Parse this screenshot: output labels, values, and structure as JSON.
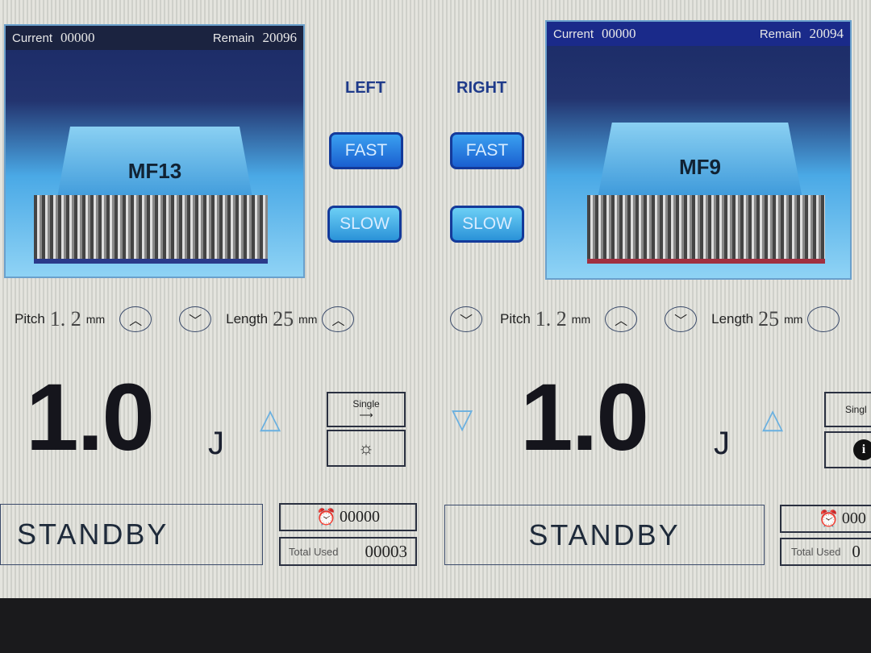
{
  "left": {
    "side_label": "LEFT",
    "current_label": "Current",
    "current": "00000",
    "remain_label": "Remain",
    "remain": "20096",
    "cartridge": "MF13",
    "fast": "FAST",
    "slow": "SLOW",
    "pitch_label": "Pitch",
    "pitch": "1. 2",
    "pitch_unit": "mm",
    "length_label": "Length",
    "length": "25",
    "length_unit": "mm",
    "energy": "1.0",
    "energy_unit": "J",
    "mode": "Single",
    "status": "STANDBY",
    "timer": "00000",
    "total_used_label": "Total Used",
    "total_used": "00003"
  },
  "right": {
    "side_label": "RIGHT",
    "current_label": "Current",
    "current": "00000",
    "remain_label": "Remain",
    "remain": "20094",
    "cartridge": "MF9",
    "fast": "FAST",
    "slow": "SLOW",
    "pitch_label": "Pitch",
    "pitch": "1. 2",
    "pitch_unit": "mm",
    "length_label": "Length",
    "length": "25",
    "length_unit": "mm",
    "energy": "1.0",
    "energy_unit": "J",
    "mode": "Singl",
    "status": "STANDBY",
    "timer": "000",
    "total_used_label": "Total Used",
    "total_used": "0"
  },
  "icons": {
    "up": "chevron-up-icon",
    "down": "chevron-down-icon",
    "alarm": "alarm-clock-icon",
    "settings": "gear-icon",
    "info": "info-icon"
  }
}
